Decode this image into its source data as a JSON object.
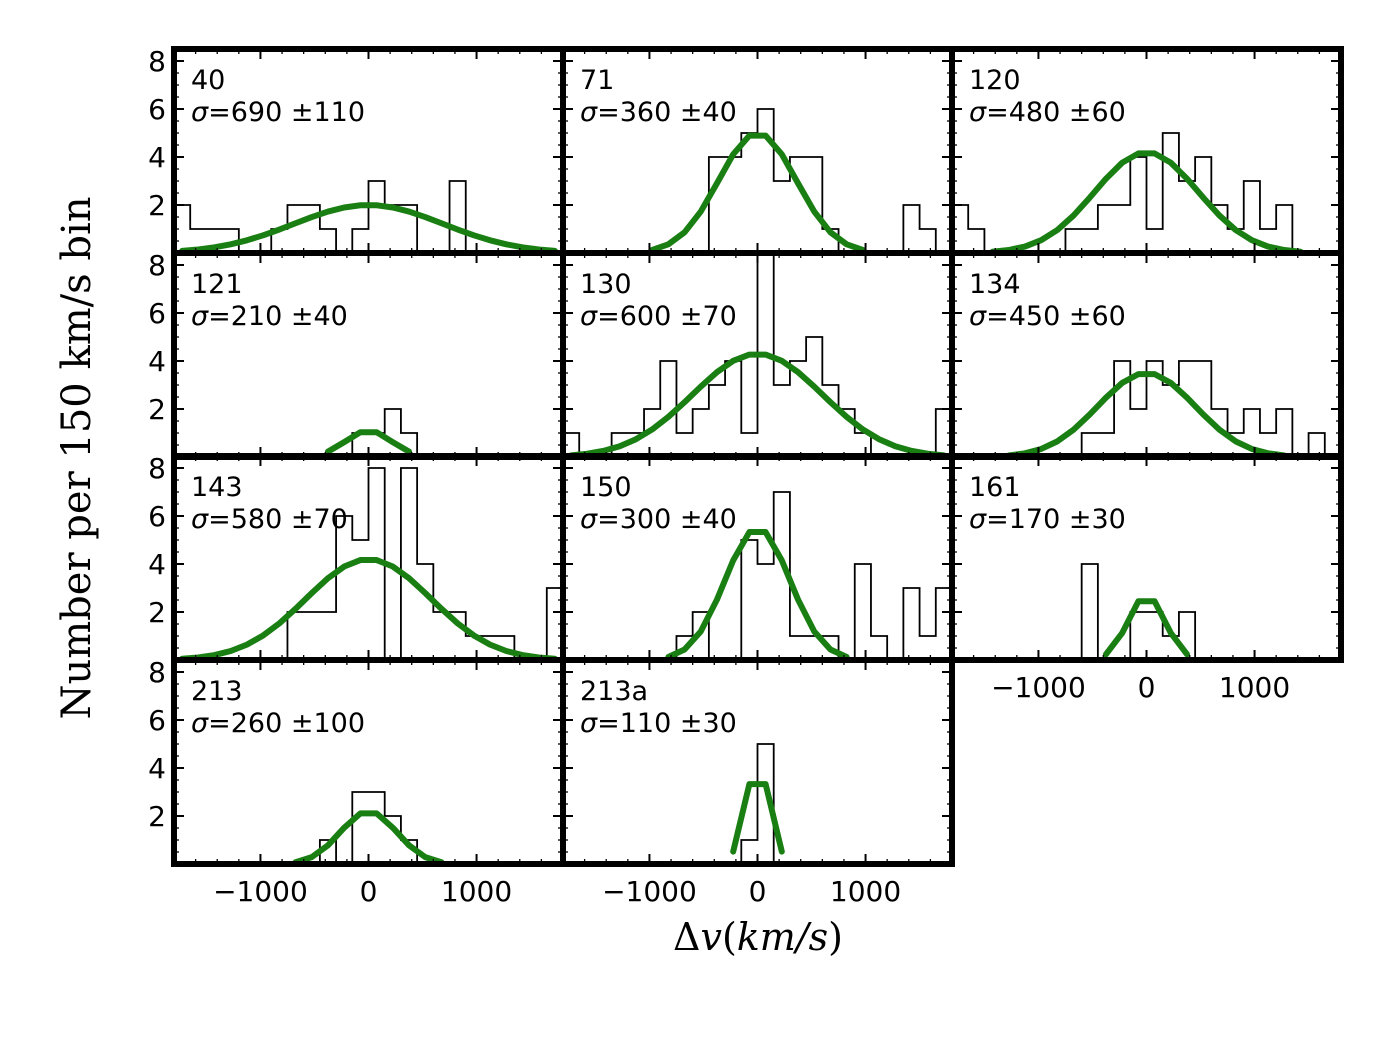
{
  "chart_data": {
    "type": "histogram-grid",
    "ylabel": "Number per 150 km/s bin",
    "xlabel_delta": "Δ",
    "xlabel_v": "v",
    "xlabel_units": "km/s",
    "xlim": [
      -1800,
      1800
    ],
    "ylim": [
      0,
      8.5
    ],
    "bin_width": 150,
    "x_ticks": [
      -1000,
      0,
      1000
    ],
    "x_tick_labels": [
      "−1000",
      "0",
      "1000"
    ],
    "y_ticks": [
      2,
      4,
      6,
      8
    ],
    "y_tick_labels": [
      "2",
      "4",
      "6",
      "8"
    ],
    "fit_color": "#1a7f12",
    "sigma_symbol": "σ",
    "panels": [
      {
        "id": "40",
        "sigma_text": "=690 ±110",
        "amplitude": 2.0,
        "sigma": 690,
        "bin_edges": [
          -1800,
          -1650,
          -1500,
          -1350,
          -1200,
          -1050,
          -900,
          -750,
          -600,
          -450,
          -300,
          -150,
          0,
          150,
          300,
          450,
          600,
          750,
          900,
          1050,
          1200,
          1350,
          1500,
          1650,
          1800
        ],
        "counts": [
          2,
          1,
          1,
          1,
          0,
          0,
          1,
          2,
          2,
          1,
          0,
          1,
          3,
          2,
          2,
          0,
          0,
          3,
          0,
          0,
          0,
          0,
          0,
          0
        ]
      },
      {
        "id": "71",
        "sigma_text": "=360 ±40",
        "amplitude": 5.0,
        "sigma": 360,
        "bin_edges": [
          -1800,
          -1650,
          -1500,
          -1350,
          -1200,
          -1050,
          -900,
          -750,
          -600,
          -450,
          -300,
          -150,
          0,
          150,
          300,
          450,
          600,
          750,
          900,
          1050,
          1200,
          1350,
          1500,
          1650,
          1800
        ],
        "counts": [
          0,
          0,
          0,
          0,
          0,
          0,
          0,
          0,
          0,
          4,
          4,
          5,
          6,
          3,
          4,
          4,
          1,
          0,
          0,
          0,
          0,
          2,
          1,
          0
        ]
      },
      {
        "id": "120",
        "sigma_text": "=480 ±60",
        "amplitude": 4.2,
        "sigma": 480,
        "bin_edges": [
          -1800,
          -1650,
          -1500,
          -1350,
          -1200,
          -1050,
          -900,
          -750,
          -600,
          -450,
          -300,
          -150,
          0,
          150,
          300,
          450,
          600,
          750,
          900,
          1050,
          1200,
          1350,
          1500,
          1650,
          1800
        ],
        "counts": [
          2,
          1,
          0,
          0,
          0,
          0,
          0,
          1,
          1,
          2,
          2,
          4,
          1,
          5,
          3,
          4,
          2,
          1,
          3,
          1,
          2,
          0,
          0,
          0
        ]
      },
      {
        "id": "121",
        "sigma_text": "=210 ±40",
        "amplitude": 1.1,
        "sigma": 210,
        "bin_edges": [
          -1800,
          -1650,
          -1500,
          -1350,
          -1200,
          -1050,
          -900,
          -750,
          -600,
          -450,
          -300,
          -150,
          0,
          150,
          300,
          450,
          600,
          750,
          900,
          1050,
          1200,
          1350,
          1500,
          1650,
          1800
        ],
        "counts": [
          0,
          0,
          0,
          0,
          0,
          0,
          0,
          0,
          0,
          0,
          0,
          1,
          1,
          2,
          1,
          0,
          0,
          0,
          0,
          0,
          0,
          0,
          0,
          0
        ]
      },
      {
        "id": "130",
        "sigma_text": "=600 ±70",
        "amplitude": 4.3,
        "sigma": 600,
        "bin_edges": [
          -1800,
          -1650,
          -1500,
          -1350,
          -1200,
          -1050,
          -900,
          -750,
          -600,
          -450,
          -300,
          -150,
          0,
          150,
          300,
          450,
          600,
          750,
          900,
          1050,
          1200,
          1350,
          1500,
          1650,
          1800
        ],
        "counts": [
          1,
          0,
          0,
          1,
          1,
          2,
          4,
          1,
          2,
          3,
          4,
          1,
          9,
          3,
          4,
          5,
          3,
          2,
          1,
          0,
          0,
          0,
          0,
          2
        ]
      },
      {
        "id": "134",
        "sigma_text": "=450 ±60",
        "amplitude": 3.5,
        "sigma": 450,
        "bin_edges": [
          -1800,
          -1650,
          -1500,
          -1350,
          -1200,
          -1050,
          -900,
          -750,
          -600,
          -450,
          -300,
          -150,
          0,
          150,
          300,
          450,
          600,
          750,
          900,
          1050,
          1200,
          1350,
          1500,
          1650,
          1800
        ],
        "counts": [
          0,
          0,
          0,
          0,
          0,
          0,
          0,
          0,
          1,
          1,
          4,
          2,
          4,
          3,
          4,
          4,
          2,
          1,
          2,
          1,
          2,
          0,
          1,
          0
        ]
      },
      {
        "id": "143",
        "sigma_text": "=580 ±70",
        "amplitude": 4.2,
        "sigma": 580,
        "bin_edges": [
          -1800,
          -1650,
          -1500,
          -1350,
          -1200,
          -1050,
          -900,
          -750,
          -600,
          -450,
          -300,
          -150,
          0,
          150,
          300,
          450,
          600,
          750,
          900,
          1050,
          1200,
          1350,
          1500,
          1650,
          1800
        ],
        "counts": [
          0,
          0,
          0,
          0,
          0,
          0,
          0,
          2,
          2,
          2,
          6,
          5,
          8,
          0,
          8,
          4,
          2,
          2,
          1,
          1,
          1,
          0,
          0,
          3
        ]
      },
      {
        "id": "150",
        "sigma_text": "=300 ±40",
        "amplitude": 5.5,
        "sigma": 300,
        "bin_edges": [
          -1800,
          -1650,
          -1500,
          -1350,
          -1200,
          -1050,
          -900,
          -750,
          -600,
          -450,
          -300,
          -150,
          0,
          150,
          300,
          450,
          600,
          750,
          900,
          1050,
          1200,
          1350,
          1500,
          1650,
          1800
        ],
        "counts": [
          0,
          0,
          0,
          0,
          0,
          0,
          0,
          1,
          2,
          0,
          0,
          5,
          4,
          7,
          1,
          1,
          1,
          0,
          4,
          1,
          0,
          3,
          1,
          3
        ]
      },
      {
        "id": "161",
        "sigma_text": "=170 ±30",
        "amplitude": 2.7,
        "sigma": 170,
        "bin_edges": [
          -1800,
          -1650,
          -1500,
          -1350,
          -1200,
          -1050,
          -900,
          -750,
          -600,
          -450,
          -300,
          -150,
          0,
          150,
          300,
          450,
          600,
          750,
          900,
          1050,
          1200,
          1350,
          1500,
          1650,
          1800
        ],
        "counts": [
          0,
          0,
          0,
          0,
          0,
          0,
          0,
          0,
          4,
          0,
          0,
          2,
          2,
          1,
          2,
          0,
          0,
          0,
          0,
          0,
          0,
          0,
          0,
          0
        ]
      },
      {
        "id": "213",
        "sigma_text": "=260 ±100",
        "amplitude": 2.2,
        "sigma": 260,
        "bin_edges": [
          -1800,
          -1650,
          -1500,
          -1350,
          -1200,
          -1050,
          -900,
          -750,
          -600,
          -450,
          -300,
          -150,
          0,
          150,
          300,
          450,
          600,
          750,
          900,
          1050,
          1200,
          1350,
          1500,
          1650,
          1800
        ],
        "counts": [
          0,
          0,
          0,
          0,
          0,
          0,
          0,
          0,
          0,
          1,
          0,
          3,
          3,
          2,
          1,
          0,
          0,
          0,
          0,
          0,
          0,
          0,
          0,
          0
        ]
      },
      {
        "id": "213a",
        "sigma_text": "=110 ±30",
        "amplitude": 4.2,
        "sigma": 110,
        "bin_edges": [
          -1800,
          -1650,
          -1500,
          -1350,
          -1200,
          -1050,
          -900,
          -750,
          -600,
          -450,
          -300,
          -150,
          0,
          150,
          300,
          450,
          600,
          750,
          900,
          1050,
          1200,
          1350,
          1500,
          1650,
          1800
        ],
        "counts": [
          0,
          0,
          0,
          0,
          0,
          0,
          0,
          0,
          0,
          0,
          0,
          1,
          5,
          0,
          0,
          0,
          0,
          0,
          0,
          0,
          0,
          0,
          0,
          0
        ]
      }
    ]
  }
}
